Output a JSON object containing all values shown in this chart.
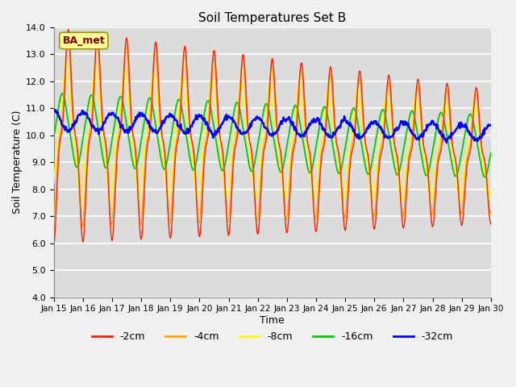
{
  "title": "Soil Temperatures Set B",
  "xlabel": "Time",
  "ylabel": "Soil Temperature (C)",
  "ylim": [
    4.0,
    14.0
  ],
  "yticks": [
    4.0,
    5.0,
    6.0,
    7.0,
    8.0,
    9.0,
    10.0,
    11.0,
    12.0,
    13.0,
    14.0
  ],
  "xtick_labels": [
    "Jan 15",
    "Jan 16",
    "Jan 17",
    "Jan 18",
    "Jan 19",
    "Jan 20",
    "Jan 21",
    "Jan 22",
    "Jan 23",
    "Jan 24",
    "Jan 25",
    "Jan 26",
    "Jan 27",
    "Jan 28",
    "Jan 29",
    "Jan 30"
  ],
  "series_colors": [
    "#ff2200",
    "#ffaa00",
    "#ffff00",
    "#00cc00",
    "#0000ff"
  ],
  "series_labels": [
    "-2cm",
    "-4cm",
    "-8cm",
    "-16cm",
    "-32cm"
  ],
  "legend_label": "BA_met",
  "legend_label_color": "#800000",
  "legend_box_color": "#ffff99",
  "background_color": "#dcdcdc",
  "grid_color": "#ffffff",
  "fig_bg_color": "#f0f0f0"
}
